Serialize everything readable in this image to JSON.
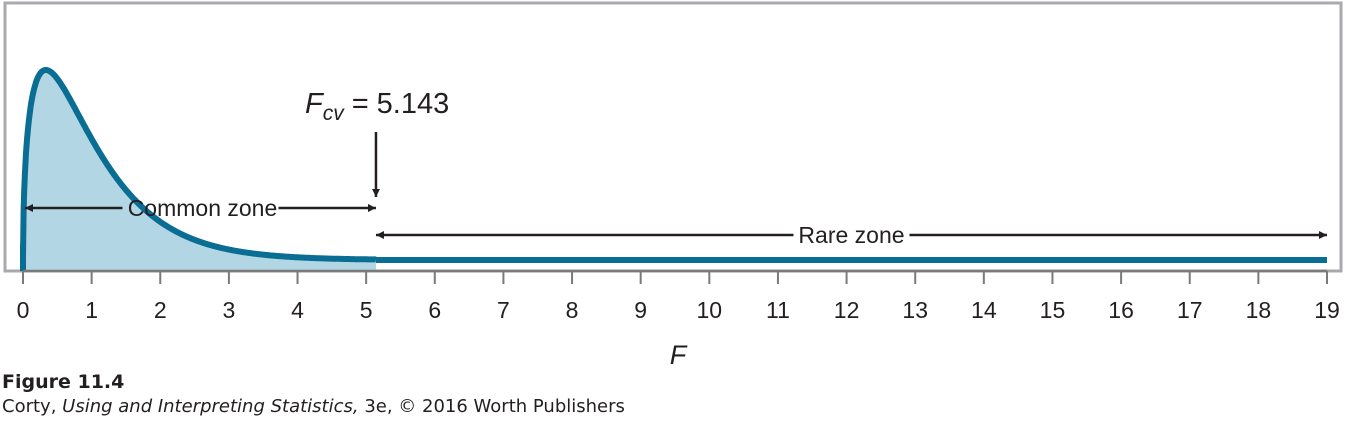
{
  "chart_data": {
    "type": "area",
    "distribution": "F",
    "xlabel": "F",
    "xlim": [
      0,
      19
    ],
    "x_ticks": [
      0,
      1,
      2,
      3,
      4,
      5,
      6,
      7,
      8,
      9,
      10,
      11,
      12,
      13,
      14,
      15,
      16,
      17,
      18,
      19
    ],
    "critical_value": {
      "label_symbol": "F",
      "label_subscript": "cv",
      "equals": "=",
      "value": "5.143",
      "x": 5.143
    },
    "zones": [
      {
        "name": "Common zone",
        "from": 0,
        "to": 5.143
      },
      {
        "name": "Rare zone",
        "from": 5.143,
        "to": 19
      }
    ],
    "colors": {
      "curve": "#0a6d93",
      "shade": "#b3d6e5",
      "axis": "#7a7a7a",
      "frame": "#a7a9ac",
      "text": "#231f20"
    }
  },
  "caption": {
    "figure_label": "Figure 11.4",
    "author": "Corty, ",
    "book_title": "Using and Interpreting Statistics,",
    "edition_publisher": " 3e, © 2016 Worth Publishers"
  }
}
